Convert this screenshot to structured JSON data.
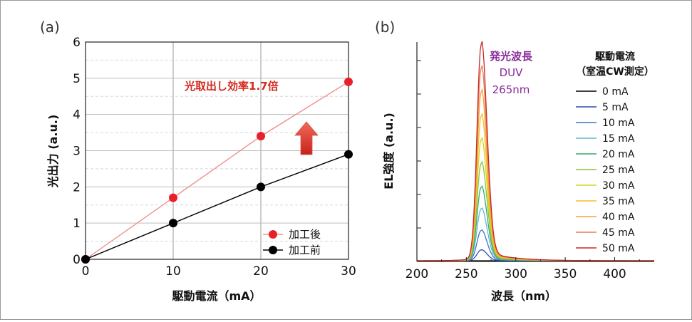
{
  "panel_labels": {
    "a": "(a)",
    "b": "(b)"
  },
  "chart_data": [
    {
      "id": "a",
      "type": "line",
      "xlabel": "駆動電流（mA）",
      "ylabel": "光出力 (a.u.)",
      "xlim": [
        0,
        30
      ],
      "ylim": [
        0,
        6
      ],
      "xticks": [
        "0",
        "10",
        "20",
        "30"
      ],
      "yticks": [
        "0",
        "1",
        "2",
        "3",
        "4",
        "5",
        "6"
      ],
      "grid": true,
      "legend_position": "bottom-right",
      "annotation": "光取出し効率1.7倍",
      "annotation_color": "#d42a1e",
      "series": [
        {
          "name": "加工後",
          "color": "#e8202a",
          "line_color": "#f08f8f",
          "x": [
            0,
            10,
            20,
            30
          ],
          "y": [
            0,
            1.7,
            3.4,
            4.9
          ]
        },
        {
          "name": "加工前",
          "color": "#000000",
          "line_color": "#000000",
          "x": [
            0,
            10,
            20,
            30
          ],
          "y": [
            0,
            1.0,
            2.0,
            2.9
          ]
        }
      ]
    },
    {
      "id": "b",
      "type": "line",
      "xlabel": "波長（nm）",
      "ylabel": "EL強度 (a.u.)",
      "xlim": [
        200,
        440
      ],
      "xticks": [
        "200",
        "250",
        "300",
        "350",
        "400"
      ],
      "annotation_lines": [
        "発光波長",
        "DUV",
        "265nm"
      ],
      "annotation_color": "#8a2a9a",
      "peak_wavelength": 265,
      "legend_title": [
        "駆動電流",
        "（室温CW測定）"
      ],
      "legend_position": "right",
      "series": [
        {
          "name": "0 mA",
          "color": "#000000",
          "peak": 0.0
        },
        {
          "name": "5 mA",
          "color": "#2d4fa8",
          "peak": 0.05
        },
        {
          "name": "10 mA",
          "color": "#3a76c2",
          "peak": 0.14
        },
        {
          "name": "15 mA",
          "color": "#62b6d9",
          "peak": 0.24
        },
        {
          "name": "20 mA",
          "color": "#39a96b",
          "peak": 0.34
        },
        {
          "name": "25 mA",
          "color": "#86c43a",
          "peak": 0.45
        },
        {
          "name": "30 mA",
          "color": "#d5d21e",
          "peak": 0.56
        },
        {
          "name": "35 mA",
          "color": "#f2c02a",
          "peak": 0.67
        },
        {
          "name": "40 mA",
          "color": "#f3a33a",
          "peak": 0.78
        },
        {
          "name": "45 mA",
          "color": "#ee7b55",
          "peak": 0.89
        },
        {
          "name": "50 mA",
          "color": "#c62a2a",
          "peak": 1.0
        }
      ]
    }
  ]
}
